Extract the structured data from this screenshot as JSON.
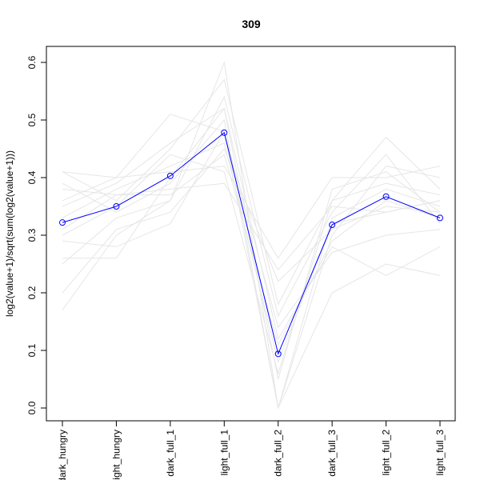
{
  "chart_data": {
    "type": "line",
    "title": "309",
    "xlabel": "",
    "ylabel": "log2(value+1)/sqrt(sum(log2(value+1)))",
    "categories": [
      "dark_hungry",
      "light_hungry",
      "dark_full_1",
      "light_full_1",
      "dark_full_2",
      "dark_full_3",
      "light_full_2",
      "light_full_3"
    ],
    "ylim": [
      0.0,
      0.6
    ],
    "yticks": [
      "0.0",
      "0.1",
      "0.2",
      "0.3",
      "0.4",
      "0.5",
      "0.6"
    ],
    "grid": false,
    "highlight_color": "#0000ff",
    "background_color": "#e6e6e6",
    "series": [
      {
        "values": [
          0.322,
          0.35,
          0.403,
          0.478,
          0.094,
          0.318,
          0.367,
          0.33
        ],
        "highlight": true
      },
      {
        "values": [
          0.17,
          0.3,
          0.36,
          0.6,
          0.0,
          0.2,
          0.25,
          0.23
        ]
      },
      {
        "values": [
          0.26,
          0.26,
          0.4,
          0.52,
          0.12,
          0.28,
          0.23,
          0.28
        ]
      },
      {
        "values": [
          0.41,
          0.4,
          0.41,
          0.42,
          0.26,
          0.4,
          0.4,
          0.42
        ]
      },
      {
        "values": [
          0.38,
          0.37,
          0.38,
          0.39,
          0.24,
          0.35,
          0.34,
          0.36
        ]
      },
      {
        "values": [
          0.39,
          0.34,
          0.39,
          0.5,
          0.0,
          0.33,
          0.38,
          0.35
        ]
      },
      {
        "values": [
          0.25,
          0.33,
          0.36,
          0.54,
          0.16,
          0.34,
          0.44,
          0.32
        ]
      },
      {
        "values": [
          0.2,
          0.31,
          0.34,
          0.45,
          0.22,
          0.31,
          0.35,
          0.34
        ]
      },
      {
        "values": [
          0.29,
          0.28,
          0.32,
          0.48,
          0.14,
          0.27,
          0.3,
          0.31
        ]
      },
      {
        "values": [
          0.41,
          0.36,
          0.45,
          0.57,
          0.18,
          0.36,
          0.47,
          0.38
        ]
      },
      {
        "values": [
          0.33,
          0.38,
          0.42,
          0.46,
          0.08,
          0.32,
          0.34,
          0.36
        ]
      },
      {
        "values": [
          0.36,
          0.4,
          0.51,
          0.48,
          0.0,
          0.3,
          0.42,
          0.4
        ]
      },
      {
        "values": [
          0.31,
          0.37,
          0.37,
          0.44,
          0.11,
          0.29,
          0.36,
          0.33
        ]
      },
      {
        "values": [
          0.35,
          0.39,
          0.46,
          0.52,
          0.05,
          0.38,
          0.41,
          0.34
        ]
      },
      {
        "values": [
          0.3,
          0.35,
          0.44,
          0.41,
          0.06,
          0.36,
          0.39,
          0.37
        ]
      }
    ]
  }
}
